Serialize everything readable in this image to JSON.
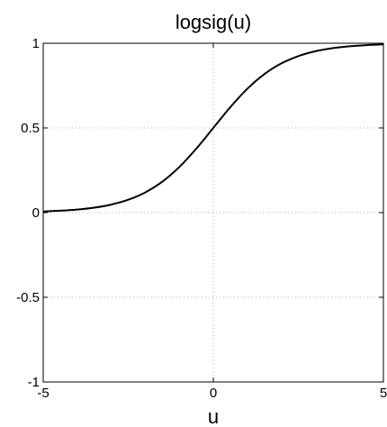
{
  "chart_data": {
    "type": "line",
    "title": "logsig(u)",
    "xlabel": "u",
    "ylabel": "",
    "xlim": [
      -5,
      5
    ],
    "ylim": [
      -1,
      1
    ],
    "xticks": [
      -5,
      0,
      5
    ],
    "yticks": [
      -1,
      -0.5,
      0,
      0.5,
      1
    ],
    "xtick_labels": [
      "-5",
      "0",
      "5"
    ],
    "ytick_labels": [
      "-1",
      "-0.5",
      "0",
      "0.5",
      "1"
    ],
    "grid": true,
    "series": [
      {
        "color": "#000000",
        "x": [
          -5,
          -4.5,
          -4,
          -3.5,
          -3,
          -2.5,
          -2,
          -1.5,
          -1,
          -0.5,
          0,
          0.5,
          1,
          1.5,
          2,
          2.5,
          3,
          3.5,
          4,
          4.5,
          5
        ],
        "y": [
          0.0067,
          0.011,
          0.018,
          0.0293,
          0.0474,
          0.0759,
          0.1192,
          0.1824,
          0.2689,
          0.3775,
          0.5,
          0.6225,
          0.7311,
          0.8176,
          0.8808,
          0.9241,
          0.9526,
          0.9707,
          0.982,
          0.989,
          0.9933
        ]
      }
    ]
  }
}
